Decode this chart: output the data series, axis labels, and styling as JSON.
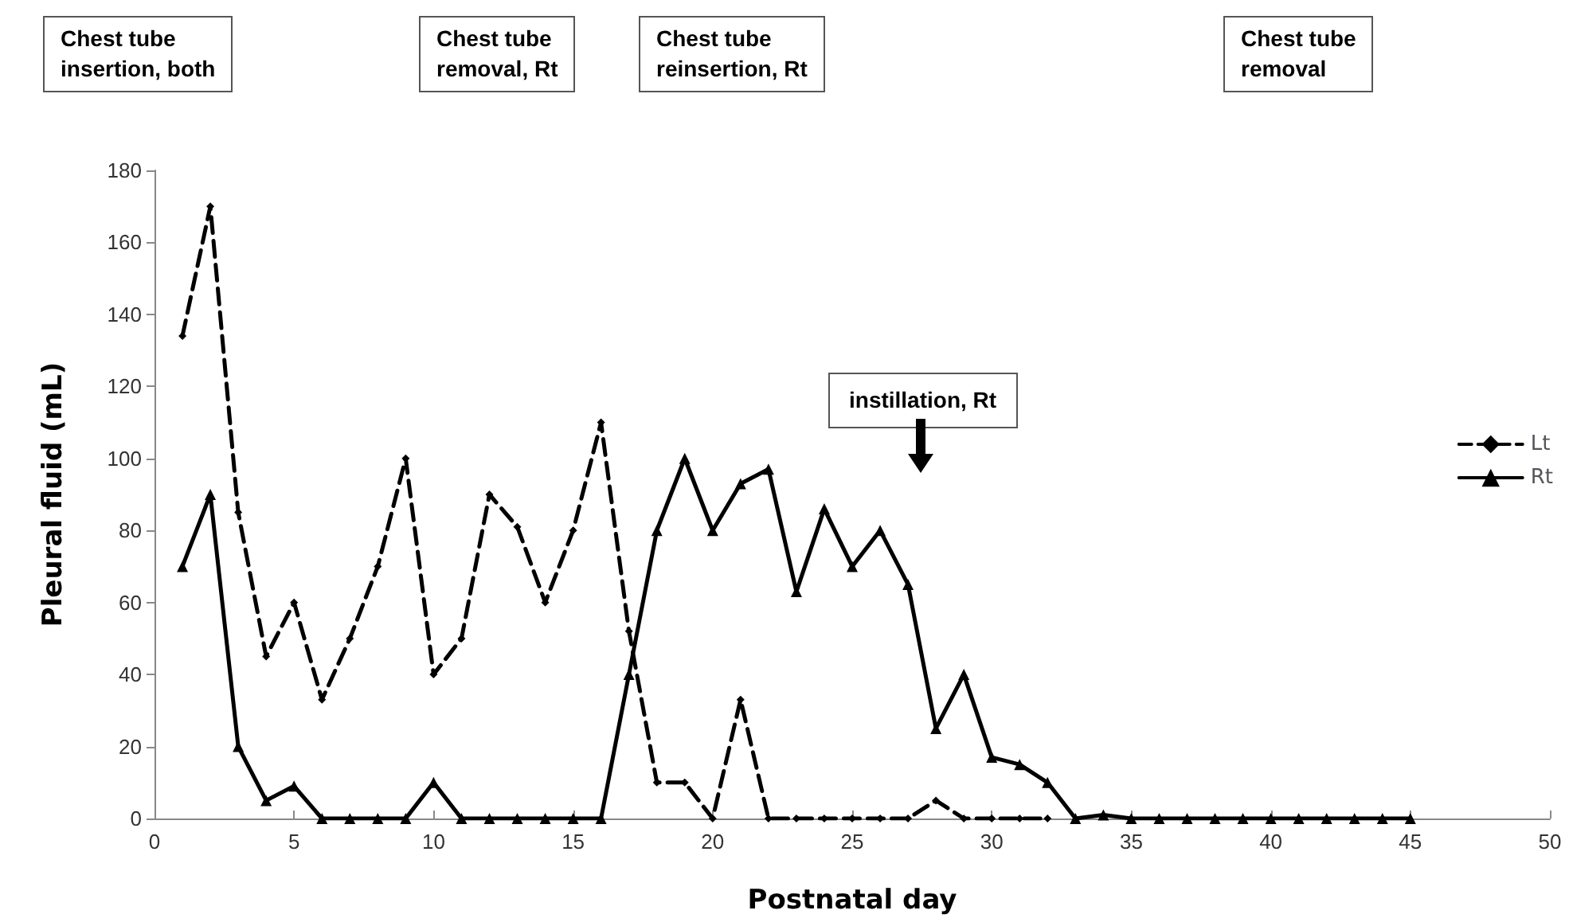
{
  "chart_data": {
    "type": "line",
    "xlabel": "Postnatal day",
    "ylabel": "Pleural fluid (mL)",
    "xlim": [
      0,
      50
    ],
    "xticks": [
      0,
      5,
      10,
      15,
      20,
      25,
      30,
      35,
      40,
      45,
      50
    ],
    "ylim": [
      0,
      180
    ],
    "yticks": [
      0,
      20,
      40,
      60,
      80,
      100,
      120,
      140,
      160,
      180
    ],
    "grid": false,
    "legend": "right",
    "series": [
      {
        "name": "Lt",
        "color": "#000000",
        "line_style": "dashed",
        "marker": "diamond",
        "x": [
          1,
          2,
          3,
          4,
          5,
          6,
          7,
          8,
          9,
          10,
          11,
          12,
          13,
          14,
          15,
          16,
          17,
          18,
          19,
          20,
          21,
          22,
          23,
          24,
          25,
          26,
          27,
          28,
          29,
          30,
          31,
          32
        ],
        "values": [
          134,
          170,
          85,
          45,
          60,
          33,
          50,
          70,
          100,
          40,
          50,
          90,
          81,
          60,
          80,
          110,
          52,
          10,
          10,
          0,
          33,
          0,
          0,
          0,
          0,
          0,
          0,
          5,
          0,
          0,
          0,
          0
        ]
      },
      {
        "name": "Rt",
        "color": "#000000",
        "line_style": "solid",
        "marker": "triangle",
        "x": [
          1,
          2,
          3,
          4,
          5,
          6,
          7,
          8,
          9,
          10,
          11,
          12,
          13,
          14,
          15,
          16,
          17,
          18,
          19,
          20,
          21,
          22,
          23,
          24,
          25,
          26,
          27,
          28,
          29,
          30,
          31,
          32,
          33,
          34,
          35,
          36,
          37,
          38,
          39,
          40,
          41,
          42,
          43,
          44,
          45
        ],
        "values": [
          70,
          90,
          20,
          5,
          9,
          0,
          0,
          0,
          0,
          10,
          0,
          0,
          0,
          0,
          0,
          0,
          40,
          80,
          100,
          80,
          93,
          97,
          63,
          86,
          70,
          80,
          65,
          25,
          40,
          17,
          15,
          10,
          0,
          1,
          0,
          0,
          0,
          0,
          0,
          0,
          0,
          0,
          0,
          0,
          0
        ]
      }
    ],
    "annotations": [
      "Chest tube\ninsertion, both",
      "Chest tube\nremoval, Rt",
      "Chest tube\nreinsertion, Rt",
      "Chest tube\nremoval",
      "instillation, Rt"
    ]
  }
}
